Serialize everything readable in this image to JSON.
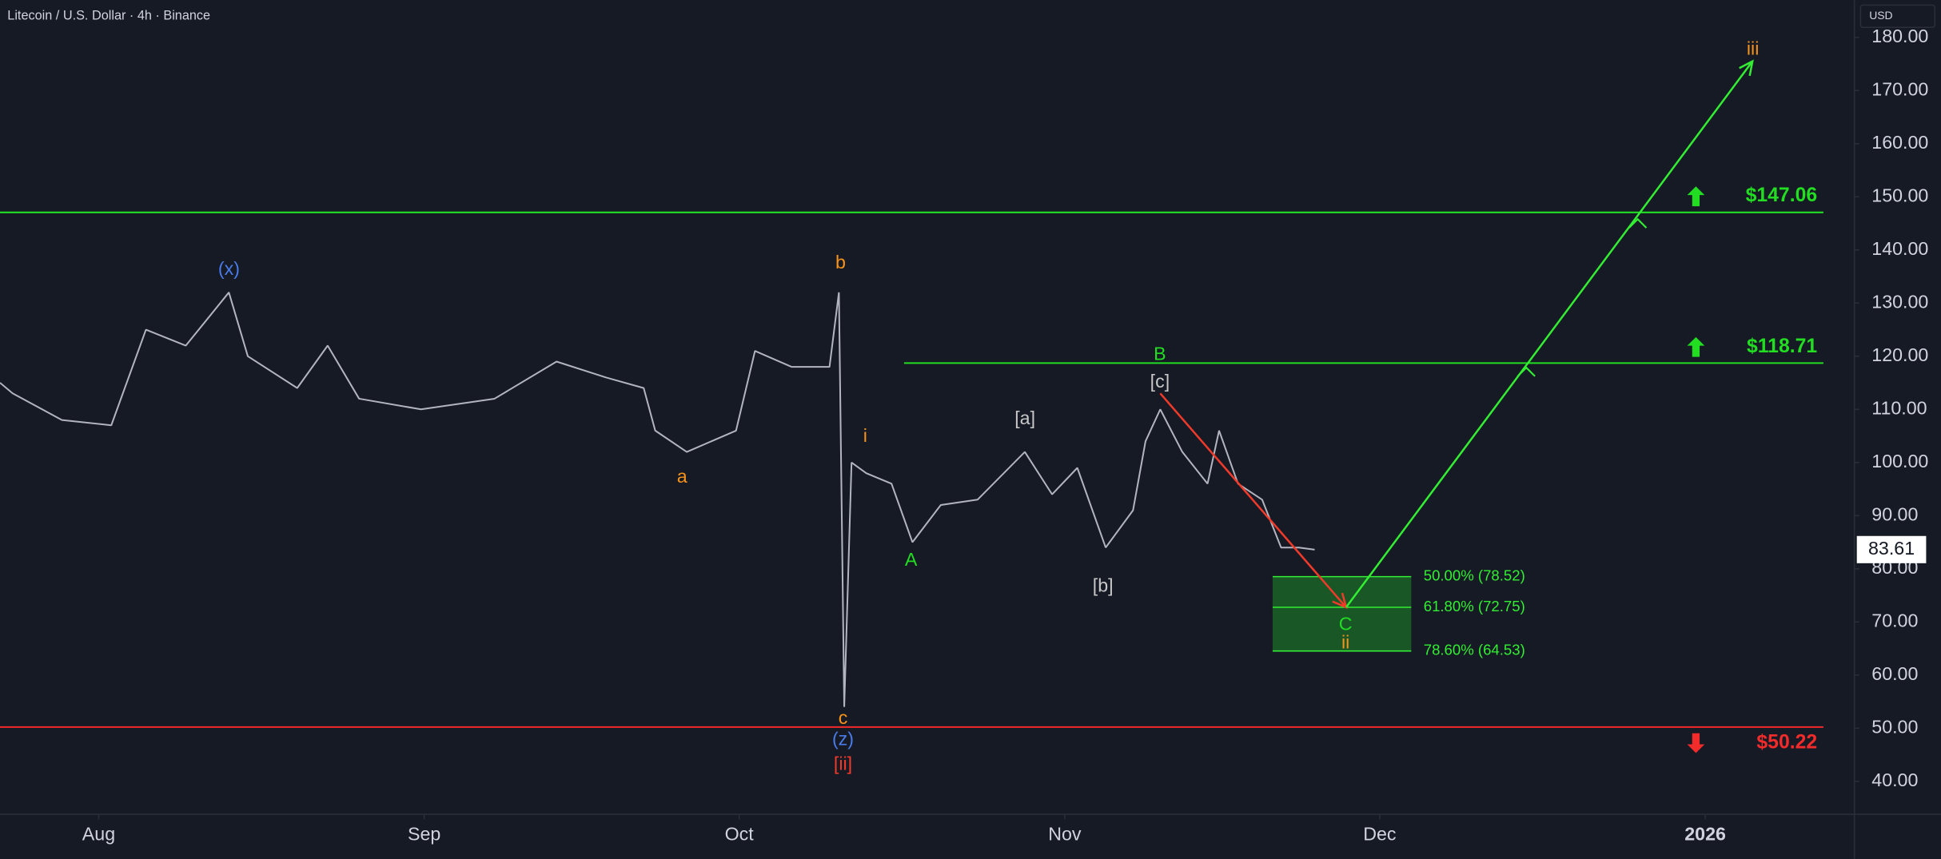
{
  "header": {
    "title": "Litecoin / U.S. Dollar · 4h · Binance"
  },
  "chart_data": {
    "type": "line",
    "color": "#b2b5be",
    "x": [
      -9.4,
      -8.2,
      -3.5,
      1.2,
      4.5,
      8.3,
      12.4,
      14.2,
      18.9,
      21.8,
      24.8,
      30.7,
      37.7,
      43.6,
      48.3,
      51.9,
      53,
      56,
      60.7,
      62.5,
      66,
      69.6,
      70.5,
      71,
      71.7,
      73.1,
      75.5,
      77.5,
      80.2,
      83.7,
      88.2,
      90.8,
      93.2,
      95.9,
      98.5,
      99.7,
      101.1,
      103.2,
      105.6,
      106.7,
      108.5,
      110.8,
      112.6,
      114.3,
      115.8
    ],
    "values": [
      115,
      113,
      108,
      107,
      125,
      122,
      132,
      120,
      114,
      122,
      112,
      110,
      112,
      119,
      116,
      114,
      106,
      102,
      106,
      121,
      118,
      118,
      132,
      54,
      100,
      98,
      96,
      85,
      92,
      93,
      102,
      94,
      99,
      84,
      91,
      104,
      110,
      102,
      96,
      106,
      96,
      93,
      84,
      84,
      83.61
    ],
    "xlim": [
      -9.4,
      167.2
    ],
    "ylim": [
      33.8,
      187
    ],
    "xticks": [
      {
        "value": 0,
        "label": "Aug"
      },
      {
        "value": 31,
        "label": "Sep"
      },
      {
        "value": 61,
        "label": "Oct"
      },
      {
        "value": 92,
        "label": "Nov"
      },
      {
        "value": 122,
        "label": "Dec"
      },
      {
        "value": 153,
        "label": "2026"
      }
    ],
    "yticks": [
      {
        "value": 40,
        "label": "40.00"
      },
      {
        "value": 50,
        "label": "50.00"
      },
      {
        "value": 60,
        "label": "60.00"
      },
      {
        "value": 70,
        "label": "70.00"
      },
      {
        "value": 80,
        "label": "80.00"
      },
      {
        "value": 90,
        "label": "90.00"
      },
      {
        "value": 100,
        "label": "100.00"
      },
      {
        "value": 110,
        "label": "110.00"
      },
      {
        "value": 120,
        "label": "120.00"
      },
      {
        "value": 130,
        "label": "130.00"
      },
      {
        "value": 140,
        "label": "140.00"
      },
      {
        "value": 150,
        "label": "150.00"
      },
      {
        "value": 160,
        "label": "160.00"
      },
      {
        "value": 170,
        "label": "170.00"
      },
      {
        "value": 180,
        "label": "180.00"
      }
    ],
    "currency": "USD",
    "last_price": 83.61,
    "levels": [
      {
        "value": 147.06,
        "label": "$147.06",
        "color": "#22dd22",
        "x_start": -9.4,
        "direction": "up"
      },
      {
        "value": 118.71,
        "label": "$118.71",
        "color": "#22dd22",
        "x_start": 76.7,
        "direction": "up"
      },
      {
        "value": 50.22,
        "label": "$50.22",
        "color": "#f22b2b",
        "x_start": -9.4,
        "direction": "down"
      }
    ],
    "fib_zone": {
      "x": [
        111.8,
        125.0
      ],
      "color": "#1e8a2a",
      "levels": [
        {
          "value": 78.52,
          "label": "50.00% (78.52)"
        },
        {
          "value": 72.75,
          "label": "61.80% (72.75)"
        },
        {
          "value": 64.53,
          "label": "78.60% (64.53)"
        }
      ]
    },
    "arrows": [
      {
        "color": "#f23a2a",
        "x": [
          101.1,
          118.8
        ],
        "y": [
          113,
          72.75
        ]
      },
      {
        "color": "#33ee33",
        "x": [
          118.8,
          157.5
        ],
        "y": [
          72.75,
          175.5
        ]
      }
    ],
    "wave_labels": [
      {
        "label": "(x)",
        "color": "#4a7bea"
      },
      {
        "label": "b",
        "color": "#f7931a"
      },
      {
        "label": "a",
        "color": "#f7931a"
      },
      {
        "label": "i",
        "color": "#f7931a"
      },
      {
        "label": "c",
        "color": "#f7931a"
      },
      {
        "label": "(z)",
        "color": "#4a7bea"
      },
      {
        "label": "[ii]",
        "color": "#f23a2a"
      },
      {
        "label": "A",
        "color": "#22dd22"
      },
      {
        "label": "[a]",
        "color": "#c8c8c8"
      },
      {
        "label": "[b]",
        "color": "#c8c8c8"
      },
      {
        "label": "B",
        "color": "#22dd22"
      },
      {
        "label": "[c]",
        "color": "#c8c8c8"
      },
      {
        "label": "C",
        "color": "#22dd22"
      },
      {
        "label": "ii",
        "color": "#f7931a"
      },
      {
        "label": "iii",
        "color": "#f7931a"
      }
    ]
  }
}
